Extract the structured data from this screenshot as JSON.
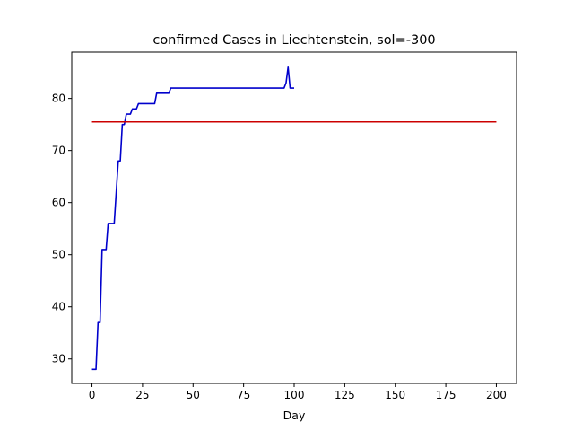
{
  "chart_data": {
    "type": "line",
    "title": "confirmed Cases in Liechtenstein, sol=-300",
    "xlabel": "Day",
    "ylabel": "",
    "xlim": [
      -10,
      210
    ],
    "ylim": [
      25.3,
      88.9
    ],
    "xticks": [
      0,
      25,
      50,
      75,
      100,
      125,
      150,
      175,
      200
    ],
    "yticks": [
      30,
      40,
      50,
      60,
      70,
      80
    ],
    "grid": false,
    "series": [
      {
        "color": "#0000cc",
        "x": [
          0,
          1,
          2,
          3,
          4,
          5,
          6,
          7,
          8,
          9,
          10,
          11,
          12,
          13,
          14,
          15,
          16,
          17,
          18,
          19,
          20,
          21,
          22,
          23,
          24,
          25,
          26,
          27,
          28,
          29,
          30,
          31,
          32,
          33,
          34,
          35,
          36,
          37,
          38,
          39,
          40,
          41,
          42,
          45,
          50,
          60,
          70,
          80,
          90,
          95,
          96,
          97,
          98,
          99,
          100
        ],
        "y": [
          28,
          28,
          28,
          37,
          37,
          51,
          51,
          51,
          56,
          56,
          56,
          56,
          62,
          68,
          68,
          75,
          75,
          77,
          77,
          77,
          78,
          78,
          78,
          79,
          79,
          79,
          79,
          79,
          79,
          79,
          79,
          79,
          81,
          81,
          81,
          81,
          81,
          81,
          81,
          82,
          82,
          82,
          82,
          82,
          82,
          82,
          82,
          82,
          82,
          82,
          83,
          86,
          82,
          82,
          82
        ]
      },
      {
        "color": "#cc0000",
        "x": [
          0,
          200
        ],
        "y": [
          75.5,
          75.5
        ]
      }
    ]
  }
}
